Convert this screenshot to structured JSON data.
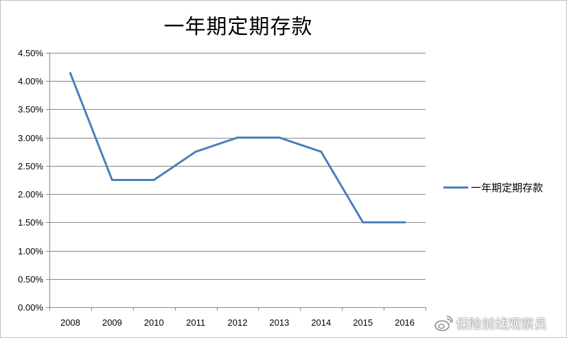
{
  "chart_data": {
    "type": "line",
    "title": "一年期定期存款",
    "categories": [
      "2008",
      "2009",
      "2010",
      "2011",
      "2012",
      "2013",
      "2014",
      "2015",
      "2016"
    ],
    "series": [
      {
        "name": "一年期定期存款",
        "values": [
          4.14,
          2.25,
          2.25,
          2.75,
          3.0,
          3.0,
          2.75,
          1.5,
          1.5
        ],
        "color": "#4a7ebb"
      }
    ],
    "ylim": [
      0,
      4.5
    ],
    "y_ticks": [
      "0.00%",
      "0.50%",
      "1.00%",
      "1.50%",
      "2.00%",
      "2.50%",
      "3.00%",
      "3.50%",
      "4.00%",
      "4.50%"
    ],
    "xlabel": "",
    "ylabel": "",
    "grid": true,
    "legend_position": "right"
  },
  "watermark": {
    "text": "保险前线观察员",
    "icon": "weibo-icon"
  }
}
